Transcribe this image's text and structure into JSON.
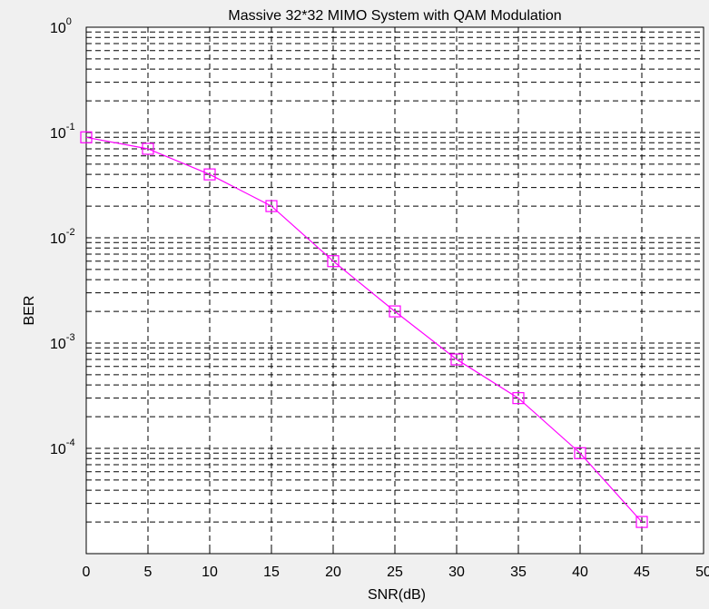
{
  "chart_data": {
    "type": "line",
    "title": "Massive 32*32 MIMO System with QAM Modulation",
    "xlabel": "SNR(dB)",
    "ylabel": "BER",
    "y_scale": "log",
    "xlim": [
      0,
      50
    ],
    "ylim": [
      1e-05,
      1
    ],
    "x_ticks": [
      "0",
      "5",
      "10",
      "15",
      "20",
      "25",
      "30",
      "35",
      "40",
      "45",
      "50"
    ],
    "y_ticks": [
      {
        "base": "10",
        "exp": "0"
      },
      {
        "base": "10",
        "exp": "-1"
      },
      {
        "base": "10",
        "exp": "-2"
      },
      {
        "base": "10",
        "exp": "-3"
      },
      {
        "base": "10",
        "exp": "-4"
      }
    ],
    "grid": "dashed, with minor log gridlines",
    "series": [
      {
        "x": [
          0,
          5,
          10,
          15,
          20,
          25,
          30,
          35,
          40,
          45
        ],
        "y": [
          0.09,
          0.07,
          0.04,
          0.02,
          0.006,
          0.002,
          0.0007,
          0.0003,
          9e-05,
          2e-05
        ],
        "color": "#ff00ff",
        "marker": "square"
      }
    ]
  }
}
